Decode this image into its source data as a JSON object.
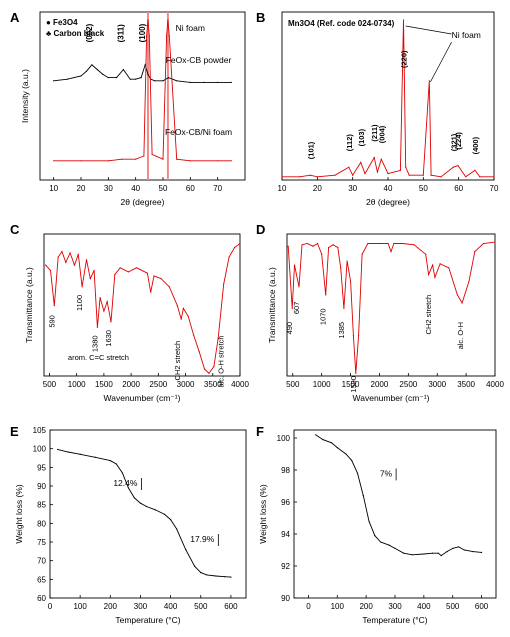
{
  "chart_data": [
    {
      "panel": "A",
      "type": "line",
      "xlabel": "2θ (degree)",
      "ylabel": "Intensity (a.u.)",
      "xlim": [
        5,
        80
      ],
      "xticks": [
        10,
        20,
        30,
        40,
        50,
        60,
        70
      ],
      "legend": [
        {
          "symbol": "●",
          "label": "Fe3O4"
        },
        {
          "symbol": "♣",
          "label": "Carbon black"
        }
      ],
      "series": [
        {
          "name": "FeOx-CB powder",
          "color": "#000000",
          "x": [
            10,
            15,
            20,
            22,
            24,
            26,
            28,
            30,
            33,
            35.5,
            38,
            40,
            42,
            43.5,
            44.5,
            45.5,
            47,
            50,
            52,
            55,
            60,
            65,
            70,
            75
          ],
          "y": [
            0.62,
            0.63,
            0.65,
            0.68,
            0.72,
            0.69,
            0.66,
            0.64,
            0.64,
            0.69,
            0.63,
            0.63,
            0.64,
            0.72,
            0.66,
            0.63,
            0.62,
            0.62,
            0.64,
            0.62,
            0.61,
            0.61,
            0.61,
            0.61
          ]
        },
        {
          "name": "FeOx-CB/Ni foam",
          "color": "#e00000",
          "x": [
            10,
            20,
            30,
            35,
            40,
            43,
            44,
            44.5,
            45,
            46,
            50,
            51.3,
            51.8,
            52.3,
            55,
            60,
            70,
            75
          ],
          "y": [
            0.12,
            0.12,
            0.12,
            0.13,
            0.13,
            0.15,
            0.9,
            1.0,
            0.9,
            0.16,
            0.13,
            0.9,
            1.0,
            0.9,
            0.13,
            0.12,
            0.12,
            0.12
          ]
        }
      ],
      "annotations": [
        {
          "text": "(002)",
          "x": 24,
          "y": 0.86
        },
        {
          "text": "(311)",
          "x": 35.5,
          "y": 0.86
        },
        {
          "text": "(100)",
          "x": 43.5,
          "y": 0.86
        },
        {
          "text": "Ni foam",
          "x": 60,
          "y": 0.93
        },
        {
          "text": "FeOx-CB powder",
          "x": 63,
          "y": 0.73
        },
        {
          "text": "FeOx-CB/Ni foam",
          "x": 63,
          "y": 0.28
        }
      ]
    },
    {
      "panel": "B",
      "type": "line",
      "xlim": [
        10,
        70
      ],
      "xticks": [
        10,
        20,
        30,
        40,
        50,
        60,
        70
      ],
      "xlabel": "2θ (degree)",
      "title": "Mn3O4 (Ref. code 024-0734)",
      "series": [
        {
          "name": "",
          "color": "#e00000",
          "x": [
            10,
            15,
            18,
            20,
            25,
            28.9,
            30,
            32.3,
            33.5,
            36.1,
            37,
            38.1,
            40,
            43.5,
            44.4,
            45,
            46,
            50,
            51.7,
            52.2,
            55,
            58.5,
            59.8,
            62,
            64.6,
            66,
            70
          ],
          "y": [
            0.02,
            0.02,
            0.03,
            0.02,
            0.03,
            0.08,
            0.03,
            0.11,
            0.04,
            0.14,
            0.05,
            0.13,
            0.04,
            0.06,
            1.0,
            0.08,
            0.03,
            0.03,
            0.62,
            0.03,
            0.02,
            0.08,
            0.09,
            0.02,
            0.06,
            0.02,
            0.02
          ]
        }
      ],
      "annotations": [
        {
          "text": "(101)",
          "x": 18
        },
        {
          "text": "(112)",
          "x": 28.9
        },
        {
          "text": "(103)",
          "x": 32.3
        },
        {
          "text": "(211)",
          "x": 36.1
        },
        {
          "text": "(004)",
          "x": 38.1
        },
        {
          "text": "(220)",
          "x": 44.4
        },
        {
          "text": "(321)",
          "x": 58.5
        },
        {
          "text": "(224)",
          "x": 59.8
        },
        {
          "text": "(400)",
          "x": 64.6
        },
        {
          "text": "Ni foam",
          "x": 58
        }
      ]
    },
    {
      "panel": "C",
      "type": "line",
      "xlabel": "Wavenumber (cm⁻¹)",
      "ylabel": "Transmittance (a.u.)",
      "xlim": [
        400,
        4000
      ],
      "xticks": [
        500,
        1000,
        1500,
        2000,
        2500,
        3000,
        3500,
        4000
      ],
      "series": [
        {
          "name": "",
          "color": "#e00000",
          "x": [
            430,
            520,
            590,
            660,
            730,
            800,
            880,
            960,
            1030,
            1100,
            1180,
            1250,
            1320,
            1380,
            1430,
            1500,
            1560,
            1630,
            1700,
            1800,
            1950,
            2100,
            2300,
            2360,
            2420,
            2550,
            2700,
            2850,
            2920,
            2960,
            3050,
            3150,
            3250,
            3350,
            3430,
            3520,
            3600,
            3700,
            3800,
            3900,
            4000
          ],
          "y": [
            0.82,
            0.78,
            0.52,
            0.88,
            0.92,
            0.84,
            0.91,
            0.82,
            0.9,
            0.66,
            0.86,
            0.72,
            0.78,
            0.36,
            0.58,
            0.48,
            0.55,
            0.4,
            0.75,
            0.8,
            0.77,
            0.8,
            0.76,
            0.62,
            0.74,
            0.72,
            0.66,
            0.52,
            0.42,
            0.5,
            0.44,
            0.3,
            0.18,
            0.05,
            0.02,
            0.07,
            0.28,
            0.68,
            0.88,
            0.95,
            0.98
          ]
        }
      ],
      "annotations": [
        {
          "text": "590"
        },
        {
          "text": "1100"
        },
        {
          "text": "1380"
        },
        {
          "text": "1630"
        },
        {
          "text": "arom. C=C stretch"
        },
        {
          "text": "CH2 stretch"
        },
        {
          "text": "alc. O-H stretch"
        }
      ]
    },
    {
      "panel": "D",
      "type": "line",
      "xlabel": "Wavenumber (cm⁻¹)",
      "ylabel": "Transmittance (a.u.)",
      "xlim": [
        400,
        4000
      ],
      "xticks": [
        500,
        1000,
        1500,
        2000,
        2500,
        3000,
        3500,
        4000
      ],
      "series": [
        {
          "name": "",
          "color": "#e00000",
          "x": [
            420,
            490,
            530,
            607,
            660,
            750,
            850,
            930,
            1000,
            1070,
            1120,
            1200,
            1280,
            1330,
            1385,
            1440,
            1500,
            1550,
            1590,
            1640,
            1700,
            1800,
            2000,
            2150,
            2200,
            2250,
            2400,
            2600,
            2800,
            2850,
            2920,
            2960,
            3050,
            3200,
            3350,
            3430,
            3550,
            3650,
            3800,
            4000
          ],
          "y": [
            0.96,
            0.5,
            0.82,
            0.66,
            0.97,
            0.98,
            0.96,
            0.98,
            0.9,
            0.6,
            0.95,
            0.97,
            0.95,
            0.8,
            0.5,
            0.85,
            0.7,
            0.3,
            0.02,
            0.3,
            0.9,
            0.98,
            0.98,
            0.98,
            0.92,
            0.98,
            0.98,
            0.97,
            0.9,
            0.75,
            0.82,
            0.73,
            0.83,
            0.8,
            0.6,
            0.54,
            0.7,
            0.92,
            0.98,
            0.99
          ]
        }
      ],
      "annotations": [
        {
          "text": "490"
        },
        {
          "text": "607"
        },
        {
          "text": "1070"
        },
        {
          "text": "1385"
        },
        {
          "text": "1590"
        },
        {
          "text": "CH2 stretch"
        },
        {
          "text": "alc. O-H"
        }
      ]
    },
    {
      "panel": "E",
      "type": "line",
      "xlabel": "Temperature (°C)",
      "ylabel": "Weight loss (%)",
      "xlim": [
        0,
        650
      ],
      "ylim": [
        60,
        105
      ],
      "xticks": [
        0,
        100,
        200,
        300,
        400,
        500,
        600
      ],
      "yticks": [
        60,
        65,
        70,
        75,
        80,
        85,
        90,
        95,
        100,
        105
      ],
      "series": [
        {
          "name": "",
          "color": "#000000",
          "x": [
            25,
            60,
            100,
            150,
            200,
            220,
            240,
            260,
            280,
            300,
            320,
            350,
            380,
            400,
            420,
            450,
            480,
            500,
            520,
            550,
            580,
            600
          ],
          "y": [
            99.8,
            99.1,
            98.5,
            97.7,
            96.8,
            95.9,
            93.5,
            89.5,
            86.8,
            85.4,
            84.5,
            83.6,
            82.4,
            81.0,
            78.5,
            73.0,
            68.5,
            66.8,
            66.2,
            65.9,
            65.7,
            65.6
          ]
        }
      ],
      "annotations": [
        {
          "text": "12.4%",
          "x": 290,
          "y": 90
        },
        {
          "text": "17.9%",
          "x": 545,
          "y": 75
        }
      ]
    },
    {
      "panel": "F",
      "type": "line",
      "xlabel": "Temperature (°C)",
      "ylabel": "Weight loss (%)",
      "xlim": [
        -50,
        650
      ],
      "ylim": [
        90,
        100.5
      ],
      "xticks": [
        0,
        100,
        200,
        300,
        400,
        500,
        600
      ],
      "yticks": [
        90,
        92,
        94,
        96,
        98,
        100
      ],
      "series": [
        {
          "name": "",
          "color": "#000000",
          "x": [
            25,
            50,
            80,
            100,
            130,
            150,
            170,
            190,
            210,
            230,
            250,
            280,
            300,
            330,
            360,
            400,
            430,
            450,
            460,
            480,
            500,
            520,
            540,
            570,
            600
          ],
          "y": [
            100.2,
            99.9,
            99.7,
            99.4,
            99.0,
            98.6,
            97.8,
            96.4,
            94.8,
            93.9,
            93.5,
            93.3,
            93.1,
            92.8,
            92.7,
            92.75,
            92.8,
            92.8,
            92.65,
            92.9,
            93.1,
            93.2,
            93.0,
            92.9,
            92.85
          ]
        }
      ],
      "annotations": [
        {
          "text": "7%",
          "x": 290,
          "y": 97.6
        }
      ]
    }
  ]
}
